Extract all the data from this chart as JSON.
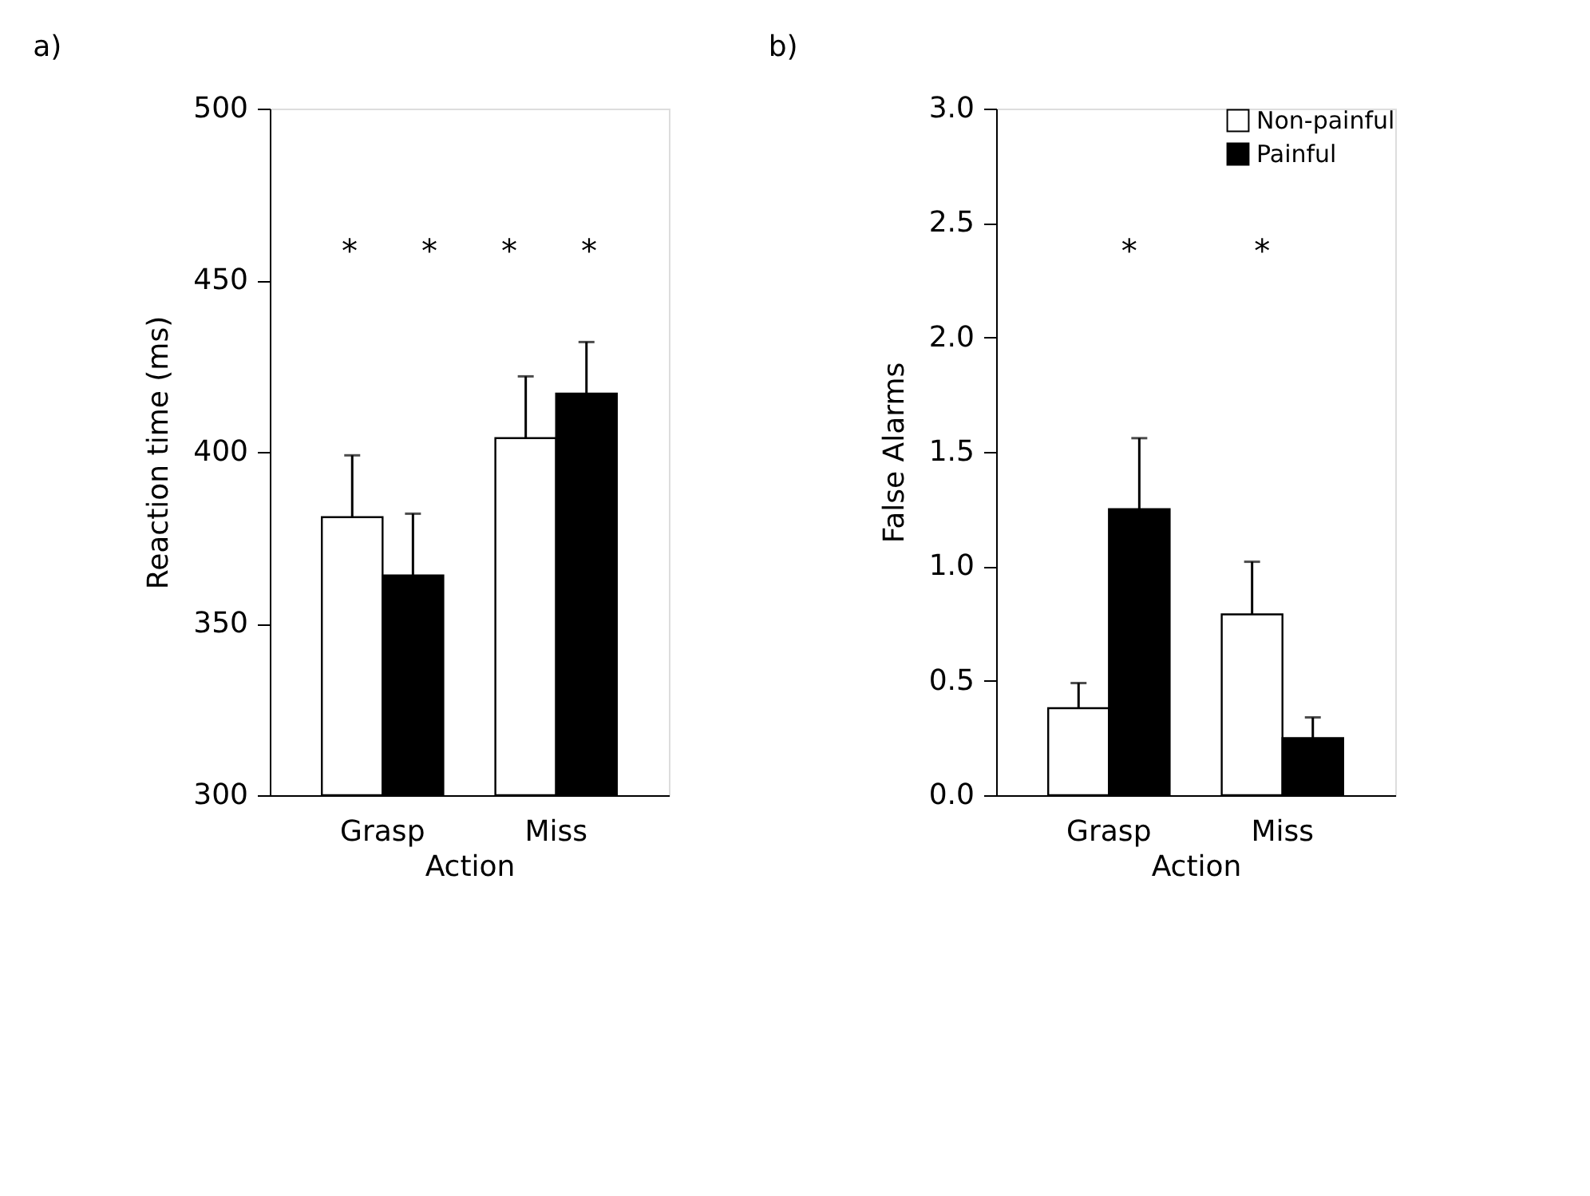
{
  "chart_data": [
    {
      "type": "bar",
      "title": "a)",
      "xlabel": "Action",
      "ylabel": "Reaction time (ms)",
      "categories": [
        "Grasp",
        "Miss"
      ],
      "ylim": [
        300,
        500
      ],
      "yticks": [
        300,
        350,
        400,
        450,
        500
      ],
      "grid": false,
      "legend": false,
      "series": [
        {
          "color": "#ffffff",
          "values": [
            381,
            404
          ],
          "errors": [
            [
              381,
              399
            ],
            [
              404,
              422
            ]
          ]
        },
        {
          "color": "#000000",
          "values": [
            364,
            417
          ],
          "errors": [
            [
              364,
              382
            ],
            [
              417,
              432
            ]
          ]
        }
      ],
      "annotations": [
        "*",
        "*",
        "*",
        "*"
      ]
    },
    {
      "type": "bar",
      "title": "b)",
      "xlabel": "Action",
      "ylabel": "False Alarms",
      "categories": [
        "Grasp",
        "Miss"
      ],
      "ylim": [
        0,
        3
      ],
      "yticks": [
        {
          "value": 0,
          "label": "0.0"
        },
        {
          "value": 0.5,
          "label": "0.5"
        },
        {
          "value": 1,
          "label": "1.0"
        },
        {
          "value": 1.5,
          "label": "1.5"
        },
        {
          "value": 2,
          "label": "2.0"
        },
        {
          "value": 2.5,
          "label": "2.5"
        },
        {
          "value": 3,
          "label": "3.0"
        }
      ],
      "grid": false,
      "legend": "top right",
      "series": [
        {
          "name": "Non-painful",
          "color": "#ffffff",
          "values": [
            0.38,
            0.79
          ],
          "errors": [
            [
              0.38,
              0.49
            ],
            [
              0.79,
              1.02
            ]
          ]
        },
        {
          "name": "Painful",
          "color": "#000000",
          "values": [
            1.25,
            0.25
          ],
          "errors": [
            [
              1.25,
              1.56
            ],
            [
              0.25,
              0.34
            ]
          ]
        }
      ],
      "annotations": [
        "*",
        "*"
      ]
    }
  ]
}
